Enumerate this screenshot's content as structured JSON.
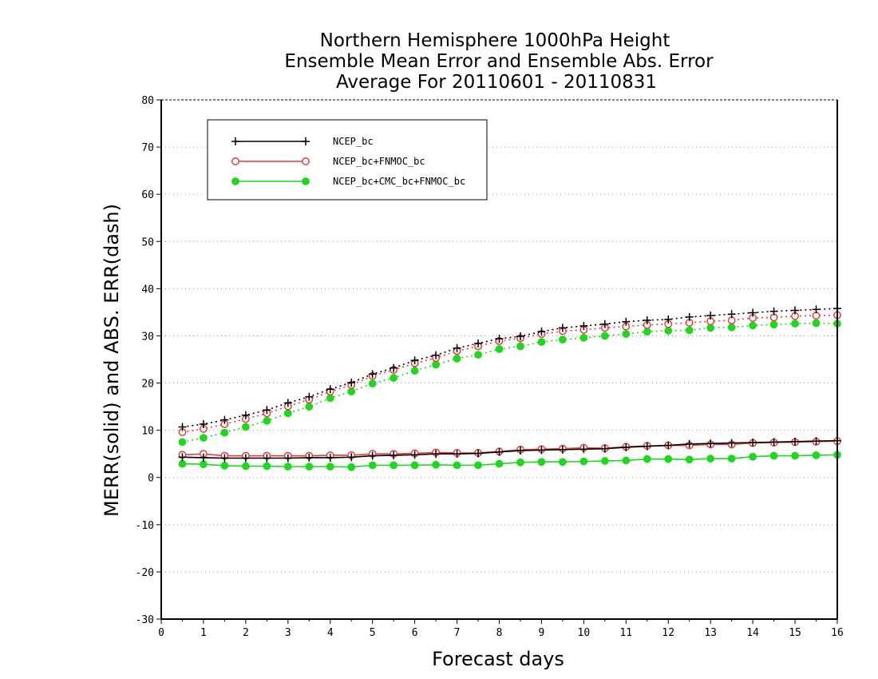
{
  "chart_data": {
    "type": "line",
    "title": [
      "Northern Hemisphere 1000hPa Height",
      "Ensemble Mean Error and Ensemble Abs. Error",
      "Average For 20110601 - 20110831"
    ],
    "xlabel": "Forecast days",
    "ylabel": "MERR(solid) and ABS. ERR(dash)",
    "xlim": [
      0,
      16
    ],
    "ylim": [
      -30,
      80
    ],
    "xticks": [
      "0",
      "1",
      "2",
      "3",
      "4",
      "5",
      "6",
      "7",
      "8",
      "9",
      "10",
      "11",
      "12",
      "13",
      "14",
      "15",
      "16"
    ],
    "yticks": [
      "80",
      "70",
      "60",
      "50",
      "40",
      "30",
      "20",
      "10",
      "0",
      "-10",
      "-20",
      "-30"
    ],
    "y_grid": true,
    "grid_style": "dotted",
    "legend_position": "top-left",
    "x": [
      0.5,
      1,
      1.5,
      2,
      2.5,
      3,
      3.5,
      4,
      4.5,
      5,
      5.5,
      6,
      6.5,
      7,
      7.5,
      8,
      8.5,
      9,
      9.5,
      10,
      10.5,
      11,
      11.5,
      12,
      12.5,
      13,
      13.5,
      14,
      14.5,
      15,
      15.5,
      16
    ],
    "series": [
      {
        "name": "NCEP_bc",
        "color": "#000000",
        "marker": "plus",
        "merr": [
          4.3,
          4.2,
          4.1,
          4.1,
          4.1,
          4.1,
          4.2,
          4.2,
          4.3,
          4.6,
          4.7,
          4.8,
          5.0,
          5.0,
          5.1,
          5.4,
          5.7,
          5.8,
          5.9,
          6.0,
          6.1,
          6.4,
          6.6,
          6.8,
          7.1,
          7.2,
          7.3,
          7.4,
          7.5,
          7.6,
          7.7,
          7.8
        ],
        "abs": [
          10.7,
          11.3,
          12.2,
          13.2,
          14.3,
          15.8,
          17.1,
          18.7,
          20.1,
          21.9,
          23.2,
          24.8,
          25.9,
          27.4,
          28.4,
          29.4,
          29.9,
          30.9,
          31.7,
          32.1,
          32.5,
          33.0,
          33.3,
          33.5,
          34.0,
          34.3,
          34.6,
          34.9,
          35.2,
          35.4,
          35.6,
          35.8
        ]
      },
      {
        "name": "NCEP_bc+FNMOC_bc",
        "color": "#e83c3c",
        "marker": "open-circle",
        "merr": [
          4.8,
          5.0,
          4.6,
          4.6,
          4.6,
          4.6,
          4.6,
          4.7,
          4.7,
          5.0,
          5.0,
          5.1,
          5.3,
          5.2,
          5.2,
          5.5,
          5.9,
          6.0,
          6.1,
          6.3,
          6.2,
          6.5,
          6.7,
          6.8,
          6.8,
          7.0,
          7.0,
          7.3,
          7.4,
          7.5,
          7.6,
          7.7
        ],
        "abs": [
          9.6,
          10.3,
          11.3,
          12.4,
          13.6,
          15.1,
          16.5,
          18.2,
          19.6,
          21.5,
          22.8,
          24.2,
          25.3,
          26.8,
          27.8,
          28.9,
          29.5,
          30.4,
          31.0,
          31.3,
          31.7,
          32.0,
          32.3,
          32.5,
          32.8,
          33.1,
          33.3,
          33.8,
          33.9,
          34.2,
          34.3,
          34.4
        ]
      },
      {
        "name": "NCEP_bc+CMC_bc+FNMOC_bc",
        "color": "#1ed81e",
        "marker": "filled-circle",
        "merr": [
          2.9,
          2.8,
          2.5,
          2.4,
          2.4,
          2.3,
          2.3,
          2.3,
          2.2,
          2.6,
          2.6,
          2.6,
          2.7,
          2.6,
          2.6,
          2.9,
          3.2,
          3.3,
          3.3,
          3.4,
          3.5,
          3.6,
          3.9,
          3.9,
          3.8,
          4.0,
          4.0,
          4.4,
          4.6,
          4.6,
          4.7,
          4.8
        ],
        "abs": [
          7.5,
          8.4,
          9.5,
          10.7,
          12.0,
          13.6,
          15.0,
          16.8,
          18.2,
          19.9,
          21.1,
          22.6,
          23.9,
          25.2,
          26.0,
          27.2,
          27.8,
          28.7,
          29.2,
          29.6,
          30.0,
          30.4,
          30.9,
          31.1,
          31.2,
          31.7,
          31.8,
          32.2,
          32.4,
          32.6,
          32.7,
          32.6
        ]
      }
    ]
  }
}
